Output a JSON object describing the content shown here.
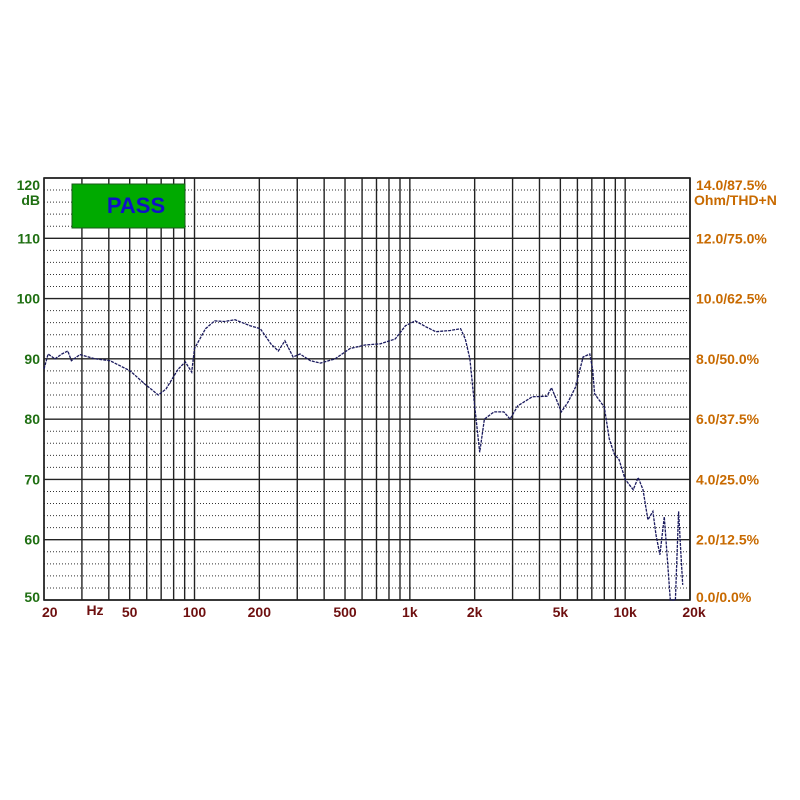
{
  "chart_data": {
    "type": "line",
    "title": "",
    "xscale": "log",
    "xlim": [
      20,
      20000
    ],
    "ylim": [
      50,
      120
    ],
    "grid": true,
    "badge": {
      "label": "PASS",
      "color": "#00aa00",
      "text_color": "#1010c8"
    },
    "left_axis": {
      "unit": "dB",
      "ticks": [
        "120",
        "110",
        "100",
        "90",
        "80",
        "70",
        "60",
        "50"
      ],
      "tick_values": [
        120,
        110,
        100,
        90,
        80,
        70,
        60,
        50
      ],
      "color": "#1f6f12"
    },
    "right_axis": {
      "unit": "Ohm/THD+N",
      "ticks": [
        "14.0/87.5%",
        "12.0/75.0%",
        "10.0/62.5%",
        "8.0/50.0%",
        "6.0/37.5%",
        "4.0/25.0%",
        "2.0/12.5%",
        "0.0/0.0%"
      ],
      "color": "#c86a00"
    },
    "x_axis": {
      "unit": "Hz",
      "ticks": [
        "20",
        "50",
        "100",
        "200",
        "500",
        "1k",
        "2k",
        "5k",
        "10k",
        "20k"
      ],
      "tick_values": [
        20,
        50,
        100,
        200,
        500,
        1000,
        2000,
        5000,
        10000,
        20000
      ],
      "color": "#6e0f0f"
    },
    "series": [
      {
        "color": "#1a1a5e",
        "x": [
          20,
          20.9,
          22.5,
          24.2,
          25.8,
          26.8,
          29.4,
          34.6,
          40.5,
          50.3,
          58.9,
          67.9,
          73.7,
          84,
          90.6,
          97,
          100,
          112.5,
          124,
          138,
          154,
          181,
          202,
          226,
          245,
          263,
          287,
          309,
          345,
          385,
          449,
          527,
          620,
          730,
          855,
          955,
          1060,
          1190,
          1320,
          1540,
          1720,
          1810,
          1900,
          1980,
          2030,
          2110,
          2220,
          2460,
          2730,
          2920,
          3170,
          3700,
          4330,
          4550,
          4790,
          5050,
          5420,
          5880,
          6380,
          6850,
          7060,
          7210,
          8000,
          8440,
          8900,
          9360,
          10000,
          10900,
          11500,
          12100,
          12750,
          13450,
          13900,
          14500,
          15200,
          15700,
          16200,
          17100,
          17700,
          18100,
          18500
        ],
        "y": [
          88.3,
          90.8,
          90,
          90.8,
          91.3,
          89.7,
          90.7,
          90,
          89.7,
          88,
          85.8,
          84,
          85,
          88.3,
          89.5,
          87.8,
          91.7,
          95,
          96.3,
          96.2,
          96.5,
          95.5,
          95,
          92.5,
          91.3,
          93,
          90.3,
          90.8,
          89.7,
          89.3,
          90,
          91.7,
          92.3,
          92.5,
          93.3,
          95.5,
          96.3,
          95.3,
          94.5,
          94.7,
          95,
          93.3,
          90,
          83.7,
          80,
          74.5,
          80,
          81.2,
          81.2,
          80,
          82.2,
          83.7,
          83.8,
          85.2,
          83.3,
          81.2,
          82.8,
          85.3,
          90.3,
          90.8,
          88.3,
          84.2,
          82,
          76.7,
          74.2,
          73.3,
          70,
          68.3,
          70.3,
          68.3,
          63.3,
          64.7,
          60.8,
          57.5,
          63.8,
          56.7,
          50,
          50,
          64.7,
          58.3,
          52.5
        ]
      }
    ]
  }
}
